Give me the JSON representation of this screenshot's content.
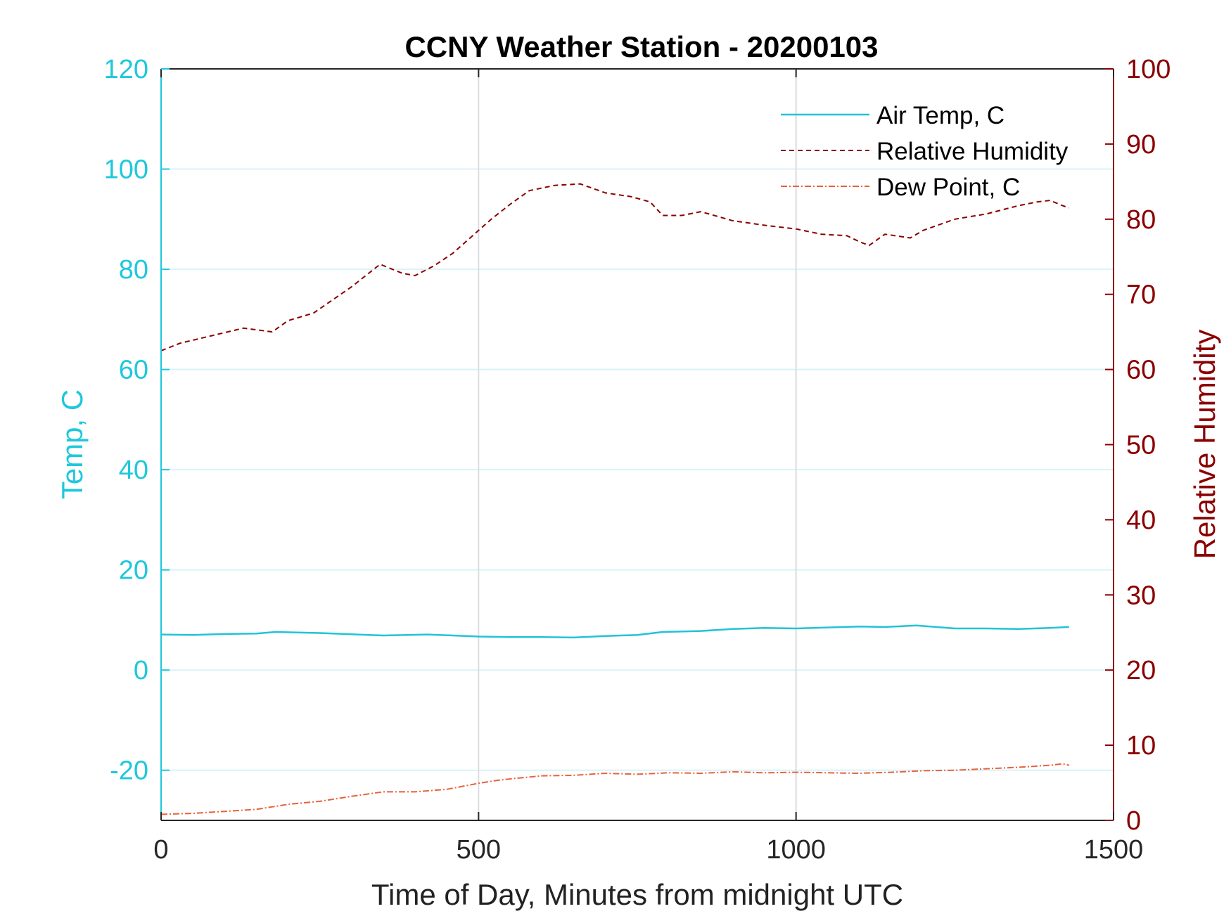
{
  "chart_data": {
    "type": "line",
    "title": "CCNY Weather Station - 20200103",
    "xlabel": "Time of Day, Minutes from midnight UTC",
    "ylabel_left": "Temp, C",
    "ylabel_right": "Relative Humidity",
    "xlim": [
      0,
      1500
    ],
    "ylim_left": [
      -30,
      120
    ],
    "ylim_right": [
      0,
      100
    ],
    "x_ticks": [
      "0",
      "500",
      "1000",
      "1500"
    ],
    "x_tick_values": [
      0,
      500,
      1000,
      1500
    ],
    "y_left_ticks": [
      "120",
      "100",
      "80",
      "60",
      "40",
      "20",
      "0",
      "-20"
    ],
    "y_left_tick_values": [
      120,
      100,
      80,
      60,
      40,
      20,
      0,
      -20
    ],
    "y_right_ticks": [
      "100",
      "90",
      "80",
      "70",
      "60",
      "50",
      "40",
      "30",
      "20",
      "10",
      "0"
    ],
    "y_right_tick_values": [
      100,
      90,
      80,
      70,
      60,
      50,
      40,
      30,
      20,
      10,
      0
    ],
    "grid": true,
    "legend_position": "top-right",
    "colors": {
      "left_axis": "#1EC8DC",
      "right_axis": "#8B0000",
      "air_temp": "#22C3D6",
      "humidity": "#8B0000",
      "dew_point": "#E8623C"
    },
    "series": [
      {
        "name": "Air Temp, C",
        "axis": "left",
        "style": "solid",
        "x": [
          0,
          50,
          100,
          150,
          180,
          250,
          350,
          420,
          500,
          550,
          600,
          650,
          700,
          750,
          790,
          850,
          900,
          950,
          1000,
          1050,
          1100,
          1140,
          1190,
          1250,
          1300,
          1350,
          1400,
          1430
        ],
        "y": [
          7.1,
          7.0,
          7.2,
          7.3,
          7.6,
          7.4,
          6.9,
          7.1,
          6.7,
          6.6,
          6.6,
          6.5,
          6.8,
          7.0,
          7.6,
          7.8,
          8.2,
          8.4,
          8.3,
          8.5,
          8.7,
          8.6,
          8.9,
          8.3,
          8.3,
          8.2,
          8.4,
          8.6
        ]
      },
      {
        "name": "Relative Humidity",
        "axis": "right",
        "style": "dashed",
        "x": [
          0,
          30,
          80,
          130,
          175,
          200,
          240,
          300,
          345,
          380,
          400,
          430,
          460,
          500,
          520,
          550,
          580,
          620,
          660,
          700,
          740,
          770,
          790,
          820,
          850,
          900,
          950,
          1000,
          1040,
          1080,
          1100,
          1115,
          1140,
          1180,
          1200,
          1250,
          1300,
          1350,
          1380,
          1400,
          1420,
          1430
        ],
        "y": [
          62.5,
          63.5,
          64.5,
          65.5,
          65.0,
          66.5,
          67.5,
          71.0,
          74.0,
          72.8,
          72.5,
          73.8,
          75.5,
          78.5,
          80.0,
          82.0,
          83.8,
          84.5,
          84.7,
          83.5,
          83.0,
          82.3,
          80.5,
          80.5,
          81.0,
          79.8,
          79.2,
          78.7,
          78.0,
          77.8,
          77.0,
          76.5,
          78.0,
          77.5,
          78.5,
          80.0,
          80.7,
          81.8,
          82.3,
          82.5,
          81.8,
          81.5
        ]
      },
      {
        "name": "Dew Point, C",
        "axis": "left",
        "style": "dashdot",
        "x": [
          0,
          50,
          100,
          150,
          200,
          250,
          300,
          350,
          400,
          450,
          500,
          530,
          560,
          600,
          650,
          700,
          750,
          800,
          850,
          900,
          950,
          1000,
          1050,
          1100,
          1150,
          1200,
          1250,
          1300,
          1350,
          1400,
          1420,
          1430
        ],
        "y": [
          -28.8,
          -28.6,
          -28.2,
          -27.8,
          -26.8,
          -26.2,
          -25.2,
          -24.3,
          -24.3,
          -23.8,
          -22.6,
          -22.0,
          -21.6,
          -21.1,
          -21.0,
          -20.6,
          -20.8,
          -20.5,
          -20.6,
          -20.3,
          -20.5,
          -20.4,
          -20.5,
          -20.6,
          -20.4,
          -20.1,
          -20.0,
          -19.7,
          -19.4,
          -19.0,
          -18.7,
          -19.0
        ]
      }
    ]
  }
}
